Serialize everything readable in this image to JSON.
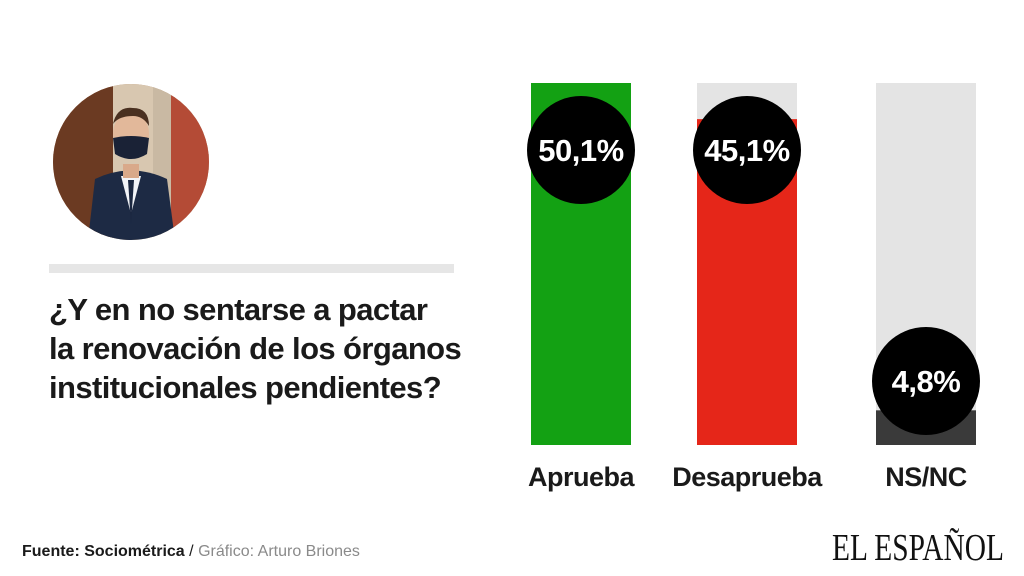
{
  "question": {
    "lines": [
      "¿Y en no sentarse a pactar",
      "la renovación de los órganos",
      "institucionales pendientes?"
    ]
  },
  "chart_data": {
    "type": "bar",
    "title": "¿Y en no sentarse a pactar la renovación de los órganos institucionales pendientes?",
    "categories": [
      "Aprueba",
      "Desaprueba",
      "NS/NC"
    ],
    "values": [
      50.1,
      45.1,
      4.8
    ],
    "value_labels": [
      "50,1%",
      "45,1%",
      "4,8%"
    ],
    "ylim": [
      0,
      50.1
    ],
    "unit": "%",
    "colors": [
      "#13a113",
      "#e52619",
      "#3a3a3a"
    ],
    "track_color": "#e4e4e4",
    "bubble_color": "#000000"
  },
  "footer": {
    "source_label": "Fuente: Sociométrica",
    "separator": "/",
    "credit": "Gráfico: Arturo Briones"
  },
  "logo": {
    "text": "EL ESPAÑOL"
  }
}
